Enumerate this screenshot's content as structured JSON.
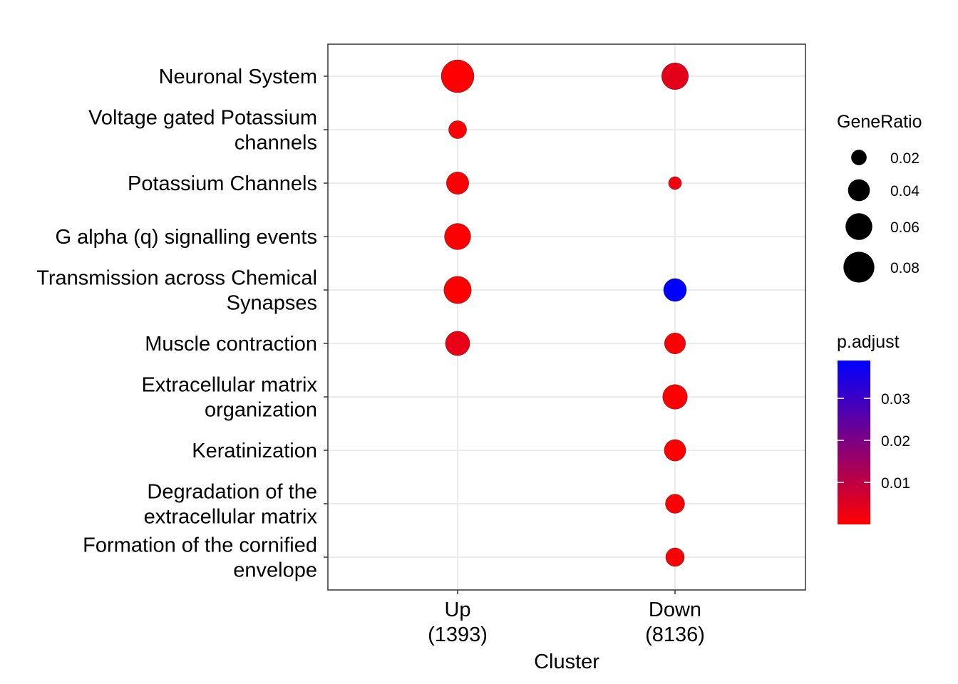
{
  "chart_data": {
    "type": "scatter",
    "xlabel": "Cluster",
    "ylabel": "",
    "grid": true,
    "x_categories": [
      {
        "name": "Up",
        "count": "(1393)"
      },
      {
        "name": "Down",
        "count": "(8136)"
      }
    ],
    "y_categories": [
      "Neuronal System",
      "Voltage gated Potassium channels",
      "Potassium Channels",
      "G alpha (q) signalling events",
      "Transmission across Chemical Synapses",
      "Muscle contraction",
      "Extracellular matrix organization",
      "Keratinization",
      "Degradation of the extracellular matrix",
      "Formation of the cornified envelope"
    ],
    "y_category_lines": [
      [
        "Neuronal System"
      ],
      [
        "Voltage gated Potassium",
        "channels"
      ],
      [
        "Potassium Channels"
      ],
      [
        "G alpha (q) signalling events"
      ],
      [
        "Transmission across Chemical",
        "Synapses"
      ],
      [
        "Muscle contraction"
      ],
      [
        "Extracellular matrix",
        "organization"
      ],
      [
        "Keratinization"
      ],
      [
        "Degradation of the",
        "extracellular matrix"
      ],
      [
        "Formation of the cornified",
        "envelope"
      ]
    ],
    "points": [
      {
        "cluster": "Up",
        "term": "Neuronal System",
        "gene_ratio": 0.09,
        "p_adjust": 0.0001
      },
      {
        "cluster": "Up",
        "term": "Voltage gated Potassium channels",
        "gene_ratio": 0.027,
        "p_adjust": 0.0006
      },
      {
        "cluster": "Up",
        "term": "Potassium Channels",
        "gene_ratio": 0.042,
        "p_adjust": 0.0004
      },
      {
        "cluster": "Up",
        "term": "G alpha (q) signalling events",
        "gene_ratio": 0.058,
        "p_adjust": 0.0005
      },
      {
        "cluster": "Up",
        "term": "Transmission across Chemical Synapses",
        "gene_ratio": 0.063,
        "p_adjust": 0.0003
      },
      {
        "cluster": "Up",
        "term": "Muscle contraction",
        "gene_ratio": 0.05,
        "p_adjust": 0.0035
      },
      {
        "cluster": "Down",
        "term": "Neuronal System",
        "gene_ratio": 0.06,
        "p_adjust": 0.004
      },
      {
        "cluster": "Down",
        "term": "Potassium Channels",
        "gene_ratio": 0.014,
        "p_adjust": 0.002
      },
      {
        "cluster": "Down",
        "term": "Transmission across Chemical Synapses",
        "gene_ratio": 0.044,
        "p_adjust": 0.039
      },
      {
        "cluster": "Down",
        "term": "Muscle contraction",
        "gene_ratio": 0.037,
        "p_adjust": 0.0005
      },
      {
        "cluster": "Down",
        "term": "Extracellular matrix organization",
        "gene_ratio": 0.051,
        "p_adjust": 0.0002
      },
      {
        "cluster": "Down",
        "term": "Keratinization",
        "gene_ratio": 0.039,
        "p_adjust": 0.0002
      },
      {
        "cluster": "Down",
        "term": "Degradation of the extracellular matrix",
        "gene_ratio": 0.031,
        "p_adjust": 0.0004
      },
      {
        "cluster": "Down",
        "term": "Formation of the cornified envelope",
        "gene_ratio": 0.029,
        "p_adjust": 0.0003
      }
    ],
    "size_legend": {
      "title": "GeneRatio",
      "values": [
        0.02,
        0.04,
        0.06,
        0.08
      ],
      "labels": [
        "0.02",
        "0.04",
        "0.06",
        "0.08"
      ]
    },
    "color_legend": {
      "title": "p.adjust",
      "min": 0.0,
      "max": 0.039,
      "ticks": [
        0.01,
        0.02,
        0.03
      ],
      "labels": [
        "0.01",
        "0.02",
        "0.03"
      ],
      "low_color": "#ff0000",
      "high_color": "#0000ff"
    }
  }
}
